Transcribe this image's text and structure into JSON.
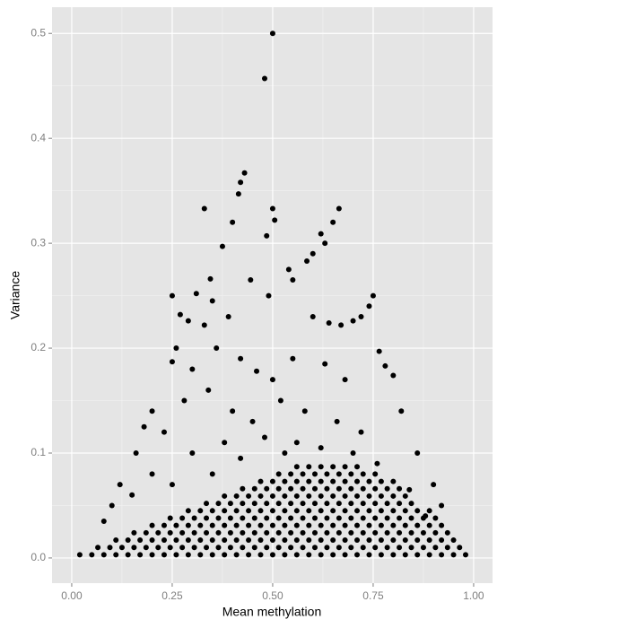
{
  "chart_data": {
    "type": "scatter",
    "xlabel": "Mean methylation",
    "ylabel": "Variance",
    "color": "#000000",
    "grid": true,
    "xlim": [
      -0.049,
      1.047
    ],
    "ylim": [
      -0.024,
      0.525
    ],
    "xticks": [
      {
        "value": 0,
        "label": "0.00"
      },
      {
        "value": 0.25,
        "label": "0.25"
      },
      {
        "value": 0.5,
        "label": "0.50"
      },
      {
        "value": 0.75,
        "label": "0.75"
      },
      {
        "value": 1,
        "label": "1.00"
      }
    ],
    "yticks": [
      {
        "value": 0,
        "label": "0.0"
      },
      0.1,
      0.2,
      0.3,
      0.4,
      0.5
    ],
    "x": [
      0.5,
      0.48,
      0.43,
      0.42,
      0.415,
      0.33,
      0.5,
      0.665,
      0.505,
      0.4,
      0.65,
      0.62,
      0.485,
      0.375,
      0.63,
      0.25,
      0.75,
      0.31,
      0.49,
      0.345,
      0.445,
      0.55,
      0.585,
      0.6,
      0.54,
      0.27,
      0.29,
      0.33,
      0.35,
      0.39,
      0.6,
      0.64,
      0.67,
      0.7,
      0.72,
      0.74,
      0.26,
      0.3,
      0.25,
      0.78,
      0.8,
      0.765,
      0.36,
      0.42,
      0.46,
      0.5,
      0.55,
      0.63,
      0.68,
      0.2,
      0.18,
      0.16,
      0.12,
      0.1,
      0.08,
      0.23,
      0.28,
      0.34,
      0.4,
      0.45,
      0.52,
      0.58,
      0.66,
      0.72,
      0.82,
      0.86,
      0.9,
      0.92,
      0.3,
      0.38,
      0.48,
      0.56,
      0.62,
      0.7,
      0.76,
      0.2,
      0.25,
      0.15,
      0.88,
      0.84,
      0.35,
      0.42,
      0.53,
      0.02,
      0.05,
      0.08,
      0.11,
      0.14,
      0.17,
      0.2,
      0.23,
      0.26,
      0.29,
      0.32,
      0.35,
      0.38,
      0.41,
      0.44,
      0.47,
      0.5,
      0.53,
      0.56,
      0.59,
      0.62,
      0.65,
      0.68,
      0.71,
      0.74,
      0.77,
      0.8,
      0.83,
      0.86,
      0.89,
      0.92,
      0.95,
      0.98,
      0.065,
      0.095,
      0.125,
      0.155,
      0.185,
      0.215,
      0.245,
      0.275,
      0.305,
      0.335,
      0.365,
      0.395,
      0.425,
      0.455,
      0.485,
      0.515,
      0.545,
      0.575,
      0.605,
      0.635,
      0.665,
      0.695,
      0.725,
      0.755,
      0.785,
      0.815,
      0.845,
      0.875,
      0.905,
      0.935,
      0.965,
      0.11,
      0.14,
      0.17,
      0.2,
      0.23,
      0.26,
      0.29,
      0.32,
      0.35,
      0.38,
      0.41,
      0.44,
      0.47,
      0.5,
      0.53,
      0.56,
      0.59,
      0.62,
      0.65,
      0.68,
      0.71,
      0.74,
      0.77,
      0.8,
      0.83,
      0.86,
      0.89,
      0.92,
      0.95,
      0.155,
      0.185,
      0.215,
      0.245,
      0.275,
      0.305,
      0.335,
      0.365,
      0.395,
      0.425,
      0.455,
      0.485,
      0.515,
      0.545,
      0.575,
      0.605,
      0.635,
      0.665,
      0.695,
      0.725,
      0.755,
      0.785,
      0.815,
      0.845,
      0.875,
      0.905,
      0.935,
      0.2,
      0.23,
      0.26,
      0.29,
      0.32,
      0.35,
      0.38,
      0.41,
      0.44,
      0.47,
      0.5,
      0.53,
      0.56,
      0.59,
      0.62,
      0.65,
      0.68,
      0.71,
      0.74,
      0.77,
      0.8,
      0.83,
      0.86,
      0.89,
      0.92,
      0.245,
      0.275,
      0.305,
      0.335,
      0.365,
      0.395,
      0.425,
      0.455,
      0.485,
      0.515,
      0.545,
      0.575,
      0.605,
      0.635,
      0.665,
      0.695,
      0.725,
      0.755,
      0.785,
      0.815,
      0.845,
      0.875,
      0.905,
      0.29,
      0.32,
      0.35,
      0.38,
      0.41,
      0.44,
      0.47,
      0.5,
      0.53,
      0.56,
      0.59,
      0.62,
      0.65,
      0.68,
      0.71,
      0.74,
      0.77,
      0.8,
      0.83,
      0.86,
      0.89,
      0.335,
      0.365,
      0.395,
      0.425,
      0.455,
      0.485,
      0.515,
      0.545,
      0.575,
      0.605,
      0.635,
      0.665,
      0.695,
      0.725,
      0.755,
      0.785,
      0.815,
      0.845,
      0.38,
      0.41,
      0.44,
      0.47,
      0.5,
      0.53,
      0.56,
      0.59,
      0.62,
      0.65,
      0.68,
      0.71,
      0.74,
      0.77,
      0.8,
      0.83,
      0.425,
      0.455,
      0.485,
      0.515,
      0.545,
      0.575,
      0.605,
      0.635,
      0.665,
      0.695,
      0.725,
      0.755,
      0.785,
      0.815,
      0.47,
      0.5,
      0.53,
      0.56,
      0.59,
      0.62,
      0.65,
      0.68,
      0.71,
      0.74,
      0.77,
      0.8,
      0.515,
      0.545,
      0.575,
      0.605,
      0.635,
      0.665,
      0.695,
      0.725,
      0.755,
      0.56,
      0.59,
      0.62,
      0.65,
      0.68,
      0.71
    ],
    "values": [
      0.5,
      0.457,
      0.367,
      0.358,
      0.347,
      0.333,
      0.333,
      0.333,
      0.322,
      0.32,
      0.32,
      0.309,
      0.307,
      0.297,
      0.3,
      0.25,
      0.25,
      0.252,
      0.25,
      0.266,
      0.265,
      0.265,
      0.283,
      0.29,
      0.275,
      0.232,
      0.226,
      0.222,
      0.245,
      0.23,
      0.23,
      0.224,
      0.222,
      0.226,
      0.23,
      0.24,
      0.2,
      0.18,
      0.187,
      0.183,
      0.174,
      0.197,
      0.2,
      0.19,
      0.178,
      0.17,
      0.19,
      0.185,
      0.17,
      0.14,
      0.125,
      0.1,
      0.07,
      0.05,
      0.035,
      0.12,
      0.15,
      0.16,
      0.14,
      0.13,
      0.15,
      0.14,
      0.13,
      0.12,
      0.14,
      0.1,
      0.07,
      0.05,
      0.1,
      0.11,
      0.115,
      0.11,
      0.105,
      0.1,
      0.09,
      0.08,
      0.07,
      0.06,
      0.04,
      0.065,
      0.08,
      0.095,
      0.1,
      0.003,
      0.003,
      0.003,
      0.003,
      0.003,
      0.003,
      0.003,
      0.003,
      0.003,
      0.003,
      0.003,
      0.003,
      0.003,
      0.003,
      0.003,
      0.003,
      0.003,
      0.003,
      0.003,
      0.003,
      0.003,
      0.003,
      0.003,
      0.003,
      0.003,
      0.003,
      0.003,
      0.003,
      0.003,
      0.003,
      0.003,
      0.003,
      0.003,
      0.01,
      0.01,
      0.01,
      0.01,
      0.01,
      0.01,
      0.01,
      0.01,
      0.01,
      0.01,
      0.01,
      0.01,
      0.01,
      0.01,
      0.01,
      0.01,
      0.01,
      0.01,
      0.01,
      0.01,
      0.01,
      0.01,
      0.01,
      0.01,
      0.01,
      0.01,
      0.01,
      0.01,
      0.01,
      0.01,
      0.01,
      0.017,
      0.017,
      0.017,
      0.017,
      0.017,
      0.017,
      0.017,
      0.017,
      0.017,
      0.017,
      0.017,
      0.017,
      0.017,
      0.017,
      0.017,
      0.017,
      0.017,
      0.017,
      0.017,
      0.017,
      0.017,
      0.017,
      0.017,
      0.017,
      0.017,
      0.017,
      0.017,
      0.017,
      0.017,
      0.024,
      0.024,
      0.024,
      0.024,
      0.024,
      0.024,
      0.024,
      0.024,
      0.024,
      0.024,
      0.024,
      0.024,
      0.024,
      0.024,
      0.024,
      0.024,
      0.024,
      0.024,
      0.024,
      0.024,
      0.024,
      0.024,
      0.024,
      0.024,
      0.024,
      0.024,
      0.024,
      0.031,
      0.031,
      0.031,
      0.031,
      0.031,
      0.031,
      0.031,
      0.031,
      0.031,
      0.031,
      0.031,
      0.031,
      0.031,
      0.031,
      0.031,
      0.031,
      0.031,
      0.031,
      0.031,
      0.031,
      0.031,
      0.031,
      0.031,
      0.031,
      0.031,
      0.038,
      0.038,
      0.038,
      0.038,
      0.038,
      0.038,
      0.038,
      0.038,
      0.038,
      0.038,
      0.038,
      0.038,
      0.038,
      0.038,
      0.038,
      0.038,
      0.038,
      0.038,
      0.038,
      0.038,
      0.038,
      0.038,
      0.038,
      0.045,
      0.045,
      0.045,
      0.045,
      0.045,
      0.045,
      0.045,
      0.045,
      0.045,
      0.045,
      0.045,
      0.045,
      0.045,
      0.045,
      0.045,
      0.045,
      0.045,
      0.045,
      0.045,
      0.045,
      0.045,
      0.052,
      0.052,
      0.052,
      0.052,
      0.052,
      0.052,
      0.052,
      0.052,
      0.052,
      0.052,
      0.052,
      0.052,
      0.052,
      0.052,
      0.052,
      0.052,
      0.052,
      0.052,
      0.059,
      0.059,
      0.059,
      0.059,
      0.059,
      0.059,
      0.059,
      0.059,
      0.059,
      0.059,
      0.059,
      0.059,
      0.059,
      0.059,
      0.059,
      0.059,
      0.066,
      0.066,
      0.066,
      0.066,
      0.066,
      0.066,
      0.066,
      0.066,
      0.066,
      0.066,
      0.066,
      0.066,
      0.066,
      0.066,
      0.073,
      0.073,
      0.073,
      0.073,
      0.073,
      0.073,
      0.073,
      0.073,
      0.073,
      0.073,
      0.073,
      0.073,
      0.08,
      0.08,
      0.08,
      0.08,
      0.08,
      0.08,
      0.08,
      0.08,
      0.08,
      0.087,
      0.087,
      0.087,
      0.087,
      0.087,
      0.087
    ]
  }
}
